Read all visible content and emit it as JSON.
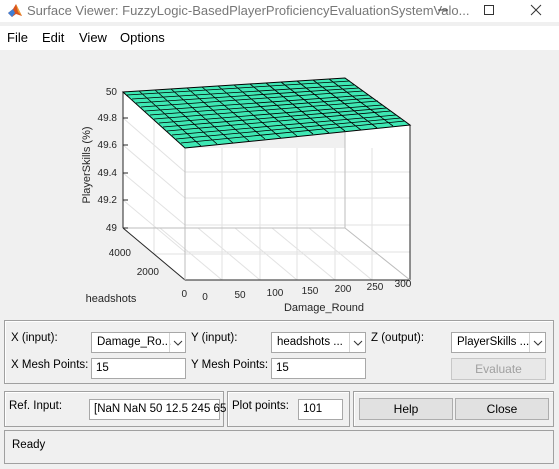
{
  "window": {
    "title": "Surface Viewer: FuzzyLogic-BasedPlayerProficiencyEvaluationSystemValo...",
    "minimize_icon": "minimize-icon",
    "maximize_icon": "maximize-icon",
    "close_icon": "close-icon"
  },
  "menu": {
    "items": [
      "File",
      "Edit",
      "View",
      "Options"
    ]
  },
  "plot": {
    "zlabel": "PlayerSkills (%)",
    "xlabel": "Damage_Round",
    "ylabel": "headshots",
    "z_ticks": [
      "50",
      "49.8",
      "49.6",
      "49.4",
      "49.2",
      "49"
    ],
    "x_ticks": [
      "0",
      "50",
      "100",
      "150",
      "200",
      "250",
      "300"
    ],
    "y_ticks": [
      "4000",
      "2000",
      "0"
    ],
    "surface_color": "#3ee8b4"
  },
  "controls": {
    "x_input_label": "X (input):",
    "x_input_value": "Damage_Ro...",
    "y_input_label": "Y (input):",
    "y_input_value": "headshots  ...",
    "z_output_label": "Z (output):",
    "z_output_value": "PlayerSkills ...",
    "x_mesh_label": "X Mesh Points:",
    "x_mesh_value": "15",
    "y_mesh_label": "Y Mesh Points:",
    "y_mesh_value": "15",
    "evaluate_label": "Evaluate",
    "ref_input_label": "Ref. Input:",
    "ref_input_value": "[NaN NaN 50 12.5 245 65",
    "plot_points_label": "Plot points:",
    "plot_points_value": "101",
    "help_label": "Help",
    "close_label": "Close"
  },
  "status": {
    "text": "Ready"
  }
}
